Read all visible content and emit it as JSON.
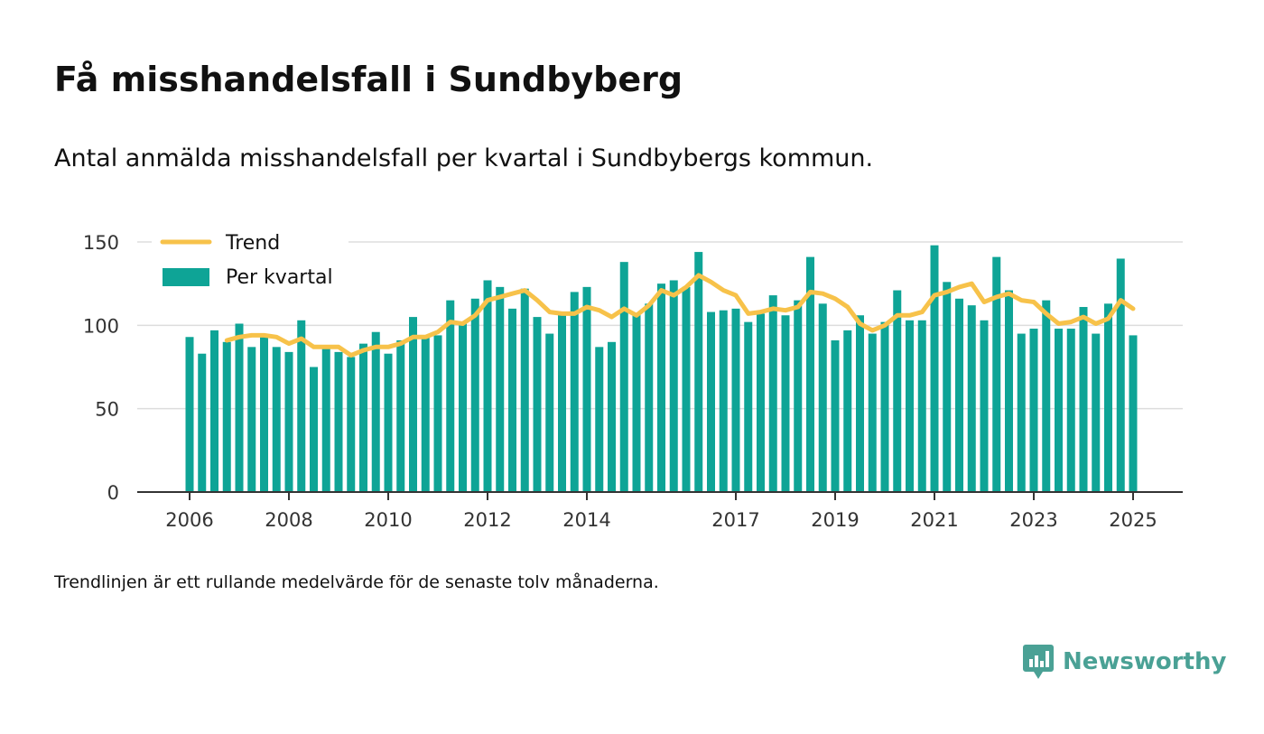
{
  "header": {
    "title": "Få misshandelsfall i Sundbyberg",
    "subtitle": "Antal anmälda misshandelsfall per kvartal i Sundbybergs kommun."
  },
  "footer": {
    "note": "Trendlinjen är ett rullande medelvärde för de senaste tolv månaderna.",
    "logo_text": "Newsworthy"
  },
  "colors": {
    "bars": "#0ea496",
    "trend": "#f7c24a",
    "logo": "#4aa195",
    "axis": "#333333",
    "grid": "#dddddd"
  },
  "chart_data": {
    "type": "bar",
    "x_tick_labels": [
      "2006",
      "2008",
      "2010",
      "2012",
      "2014",
      "2017",
      "2019",
      "2021",
      "2023",
      "2025"
    ],
    "x_tick_years": [
      2006,
      2008,
      2010,
      2012,
      2014,
      2017,
      2019,
      2021,
      2023,
      2025
    ],
    "y_ticks": [
      0,
      50,
      100,
      150
    ],
    "ylim": [
      0,
      150
    ],
    "grid": true,
    "legend_position": "top-left",
    "series": [
      {
        "name": "Per kvartal",
        "type": "bar",
        "x": [
          2006.0,
          2006.25,
          2006.5,
          2006.75,
          2007.0,
          2007.25,
          2007.5,
          2007.75,
          2008.0,
          2008.25,
          2008.5,
          2008.75,
          2009.0,
          2009.25,
          2009.5,
          2009.75,
          2010.0,
          2010.25,
          2010.5,
          2010.75,
          2011.0,
          2011.25,
          2011.5,
          2011.75,
          2012.0,
          2012.25,
          2012.5,
          2012.75,
          2013.0,
          2013.25,
          2013.5,
          2013.75,
          2014.0,
          2014.25,
          2014.5,
          2014.75,
          2015.0,
          2015.25,
          2015.5,
          2015.75,
          2016.0,
          2016.25,
          2016.5,
          2016.75,
          2017.0,
          2017.25,
          2017.5,
          2017.75,
          2018.0,
          2018.25,
          2018.5,
          2018.75,
          2019.0,
          2019.25,
          2019.5,
          2019.75,
          2020.0,
          2020.25,
          2020.5,
          2020.75,
          2021.0,
          2021.25,
          2021.5,
          2021.75,
          2022.0,
          2022.25,
          2022.5,
          2022.75,
          2023.0,
          2023.25,
          2023.5,
          2023.75,
          2024.0,
          2024.25,
          2024.5,
          2024.75,
          2025.0
        ],
        "values": [
          93,
          83,
          97,
          90,
          101,
          87,
          95,
          87,
          84,
          103,
          75,
          88,
          84,
          81,
          89,
          96,
          83,
          91,
          105,
          94,
          94,
          115,
          101,
          116,
          127,
          123,
          110,
          122,
          105,
          95,
          108,
          120,
          123,
          87,
          90,
          138,
          107,
          113,
          125,
          127,
          123,
          144,
          108,
          109,
          110,
          102,
          107,
          118,
          106,
          115,
          141,
          113,
          91,
          97,
          106,
          95,
          102,
          121,
          103,
          103,
          148,
          126,
          116,
          112,
          103,
          141,
          121,
          95,
          98,
          115,
          98,
          98,
          111,
          95,
          113,
          140,
          94
        ]
      },
      {
        "name": "Trend",
        "type": "line",
        "x": [
          2006.75,
          2007.0,
          2007.25,
          2007.5,
          2007.75,
          2008.0,
          2008.25,
          2008.5,
          2008.75,
          2009.0,
          2009.25,
          2009.5,
          2009.75,
          2010.0,
          2010.25,
          2010.5,
          2010.75,
          2011.0,
          2011.25,
          2011.5,
          2011.75,
          2012.0,
          2012.25,
          2012.5,
          2012.75,
          2013.0,
          2013.25,
          2013.5,
          2013.75,
          2014.0,
          2014.25,
          2014.5,
          2014.75,
          2015.0,
          2015.25,
          2015.5,
          2015.75,
          2016.0,
          2016.25,
          2016.5,
          2016.75,
          2017.0,
          2017.25,
          2017.5,
          2017.75,
          2018.0,
          2018.25,
          2018.5,
          2018.75,
          2019.0,
          2019.25,
          2019.5,
          2019.75,
          2020.0,
          2020.25,
          2020.5,
          2020.75,
          2021.0,
          2021.25,
          2021.5,
          2021.75,
          2022.0,
          2022.25,
          2022.5,
          2022.75,
          2023.0,
          2023.25,
          2023.5,
          2023.75,
          2024.0,
          2024.25,
          2024.5,
          2024.75,
          2025.0
        ],
        "values": [
          91,
          93,
          94,
          94,
          93,
          89,
          92,
          87,
          87,
          87,
          82,
          85,
          87,
          87,
          89,
          93,
          93,
          96,
          102,
          101,
          106,
          115,
          117,
          119,
          121,
          115,
          108,
          107,
          107,
          111,
          109,
          105,
          110,
          106,
          112,
          121,
          118,
          123,
          130,
          126,
          121,
          118,
          107,
          108,
          110,
          109,
          111,
          120,
          119,
          116,
          111,
          101,
          97,
          100,
          106,
          106,
          108,
          118,
          120,
          123,
          125,
          114,
          117,
          119,
          115,
          114,
          107,
          101,
          102,
          105,
          101,
          104,
          115,
          110
        ]
      }
    ]
  }
}
